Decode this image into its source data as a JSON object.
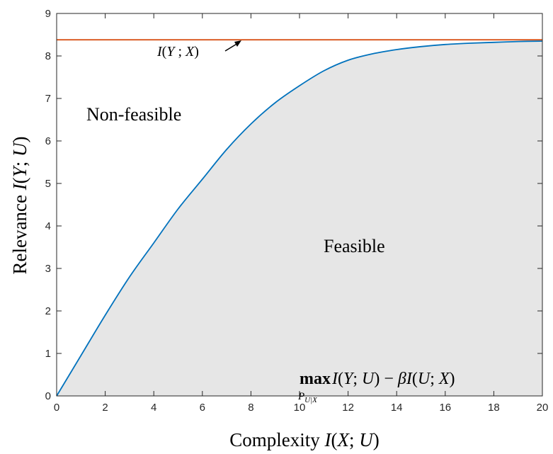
{
  "chart_data": {
    "type": "area",
    "xlabel": "Complexity I(X;U)",
    "ylabel": "Relevance I(Y;U)",
    "xlim": [
      0,
      20
    ],
    "ylim": [
      0,
      9
    ],
    "xticks": [
      "0",
      "2",
      "4",
      "6",
      "8",
      "10",
      "12",
      "14",
      "16",
      "18",
      "20"
    ],
    "yticks": [
      "0",
      "1",
      "2",
      "3",
      "4",
      "5",
      "6",
      "7",
      "8",
      "9"
    ],
    "grid": false,
    "colors": {
      "curve": "#0072BD",
      "bound": "#D95319",
      "fill": "#E6E6E6",
      "axes": "#262626"
    },
    "series": [
      {
        "x": [
          0,
          1,
          2,
          3,
          4,
          5,
          6,
          7,
          8,
          9,
          10,
          11,
          12,
          13,
          14,
          15,
          16,
          17,
          18,
          19,
          20
        ],
        "values": [
          0,
          0.95,
          1.9,
          2.8,
          3.6,
          4.4,
          5.1,
          5.8,
          6.4,
          6.9,
          7.3,
          7.65,
          7.9,
          8.05,
          8.15,
          8.22,
          8.27,
          8.3,
          8.32,
          8.34,
          8.35
        ]
      },
      {
        "x": [
          0,
          20
        ],
        "values": [
          8.38,
          8.38
        ]
      }
    ],
    "annotations": {
      "bound_label": "I(Y;X)",
      "non_feasible": "Non-feasible",
      "feasible": "Feasible",
      "objective_max": "max",
      "objective_sub": "P_{U|X}",
      "objective_expr": "I(Y;U) − βI(U;X)"
    }
  }
}
